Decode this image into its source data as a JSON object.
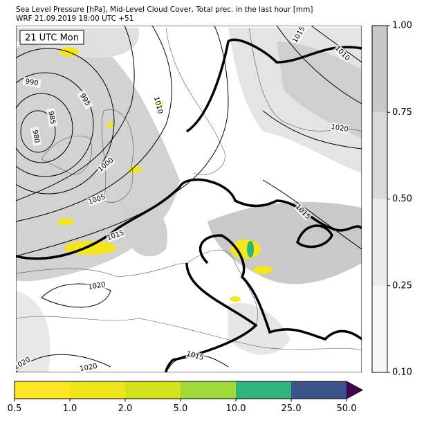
{
  "header": {
    "title": "Sea Level Pressure [hPa], Mid-Level Cloud Cover, Total prec. in the last hour [mm]",
    "subtitle": "WRF 21.09.2019 18:00 UTC +51"
  },
  "map": {
    "time_label": "21 UTC Mon",
    "contour_labels": [
      "1015",
      "1010",
      "990",
      "995",
      "985",
      "980",
      "1010",
      "1020",
      "1000",
      "1005",
      "1015",
      "1015",
      "1020",
      "1020",
      "1015",
      "1020"
    ]
  },
  "cloud_colorbar": {
    "colors": [
      "#f7f7f7",
      "#ececec",
      "#d9d9d9",
      "#c8c8c8"
    ],
    "ticks": [
      {
        "value": 0.1,
        "label": "0.10"
      },
      {
        "value": 0.25,
        "label": "0.25"
      },
      {
        "value": 0.5,
        "label": "0.50"
      },
      {
        "value": 0.75,
        "label": "0.75"
      },
      {
        "value": 1,
        "label": "1.00"
      }
    ]
  },
  "precip_colorbar": {
    "colors": [
      "#fde725",
      "#efe51c",
      "#d2e21b",
      "#a0da39",
      "#2fb47c",
      "#3b528b"
    ],
    "extend_color": "#440154",
    "ticks": [
      0.5,
      1.0,
      2.0,
      5.0,
      10.0,
      25.0,
      50.0
    ],
    "tick_labels": [
      "0.5",
      "1.0",
      "2.0",
      "5.0",
      "10.0",
      "25.0",
      "50.0"
    ]
  }
}
